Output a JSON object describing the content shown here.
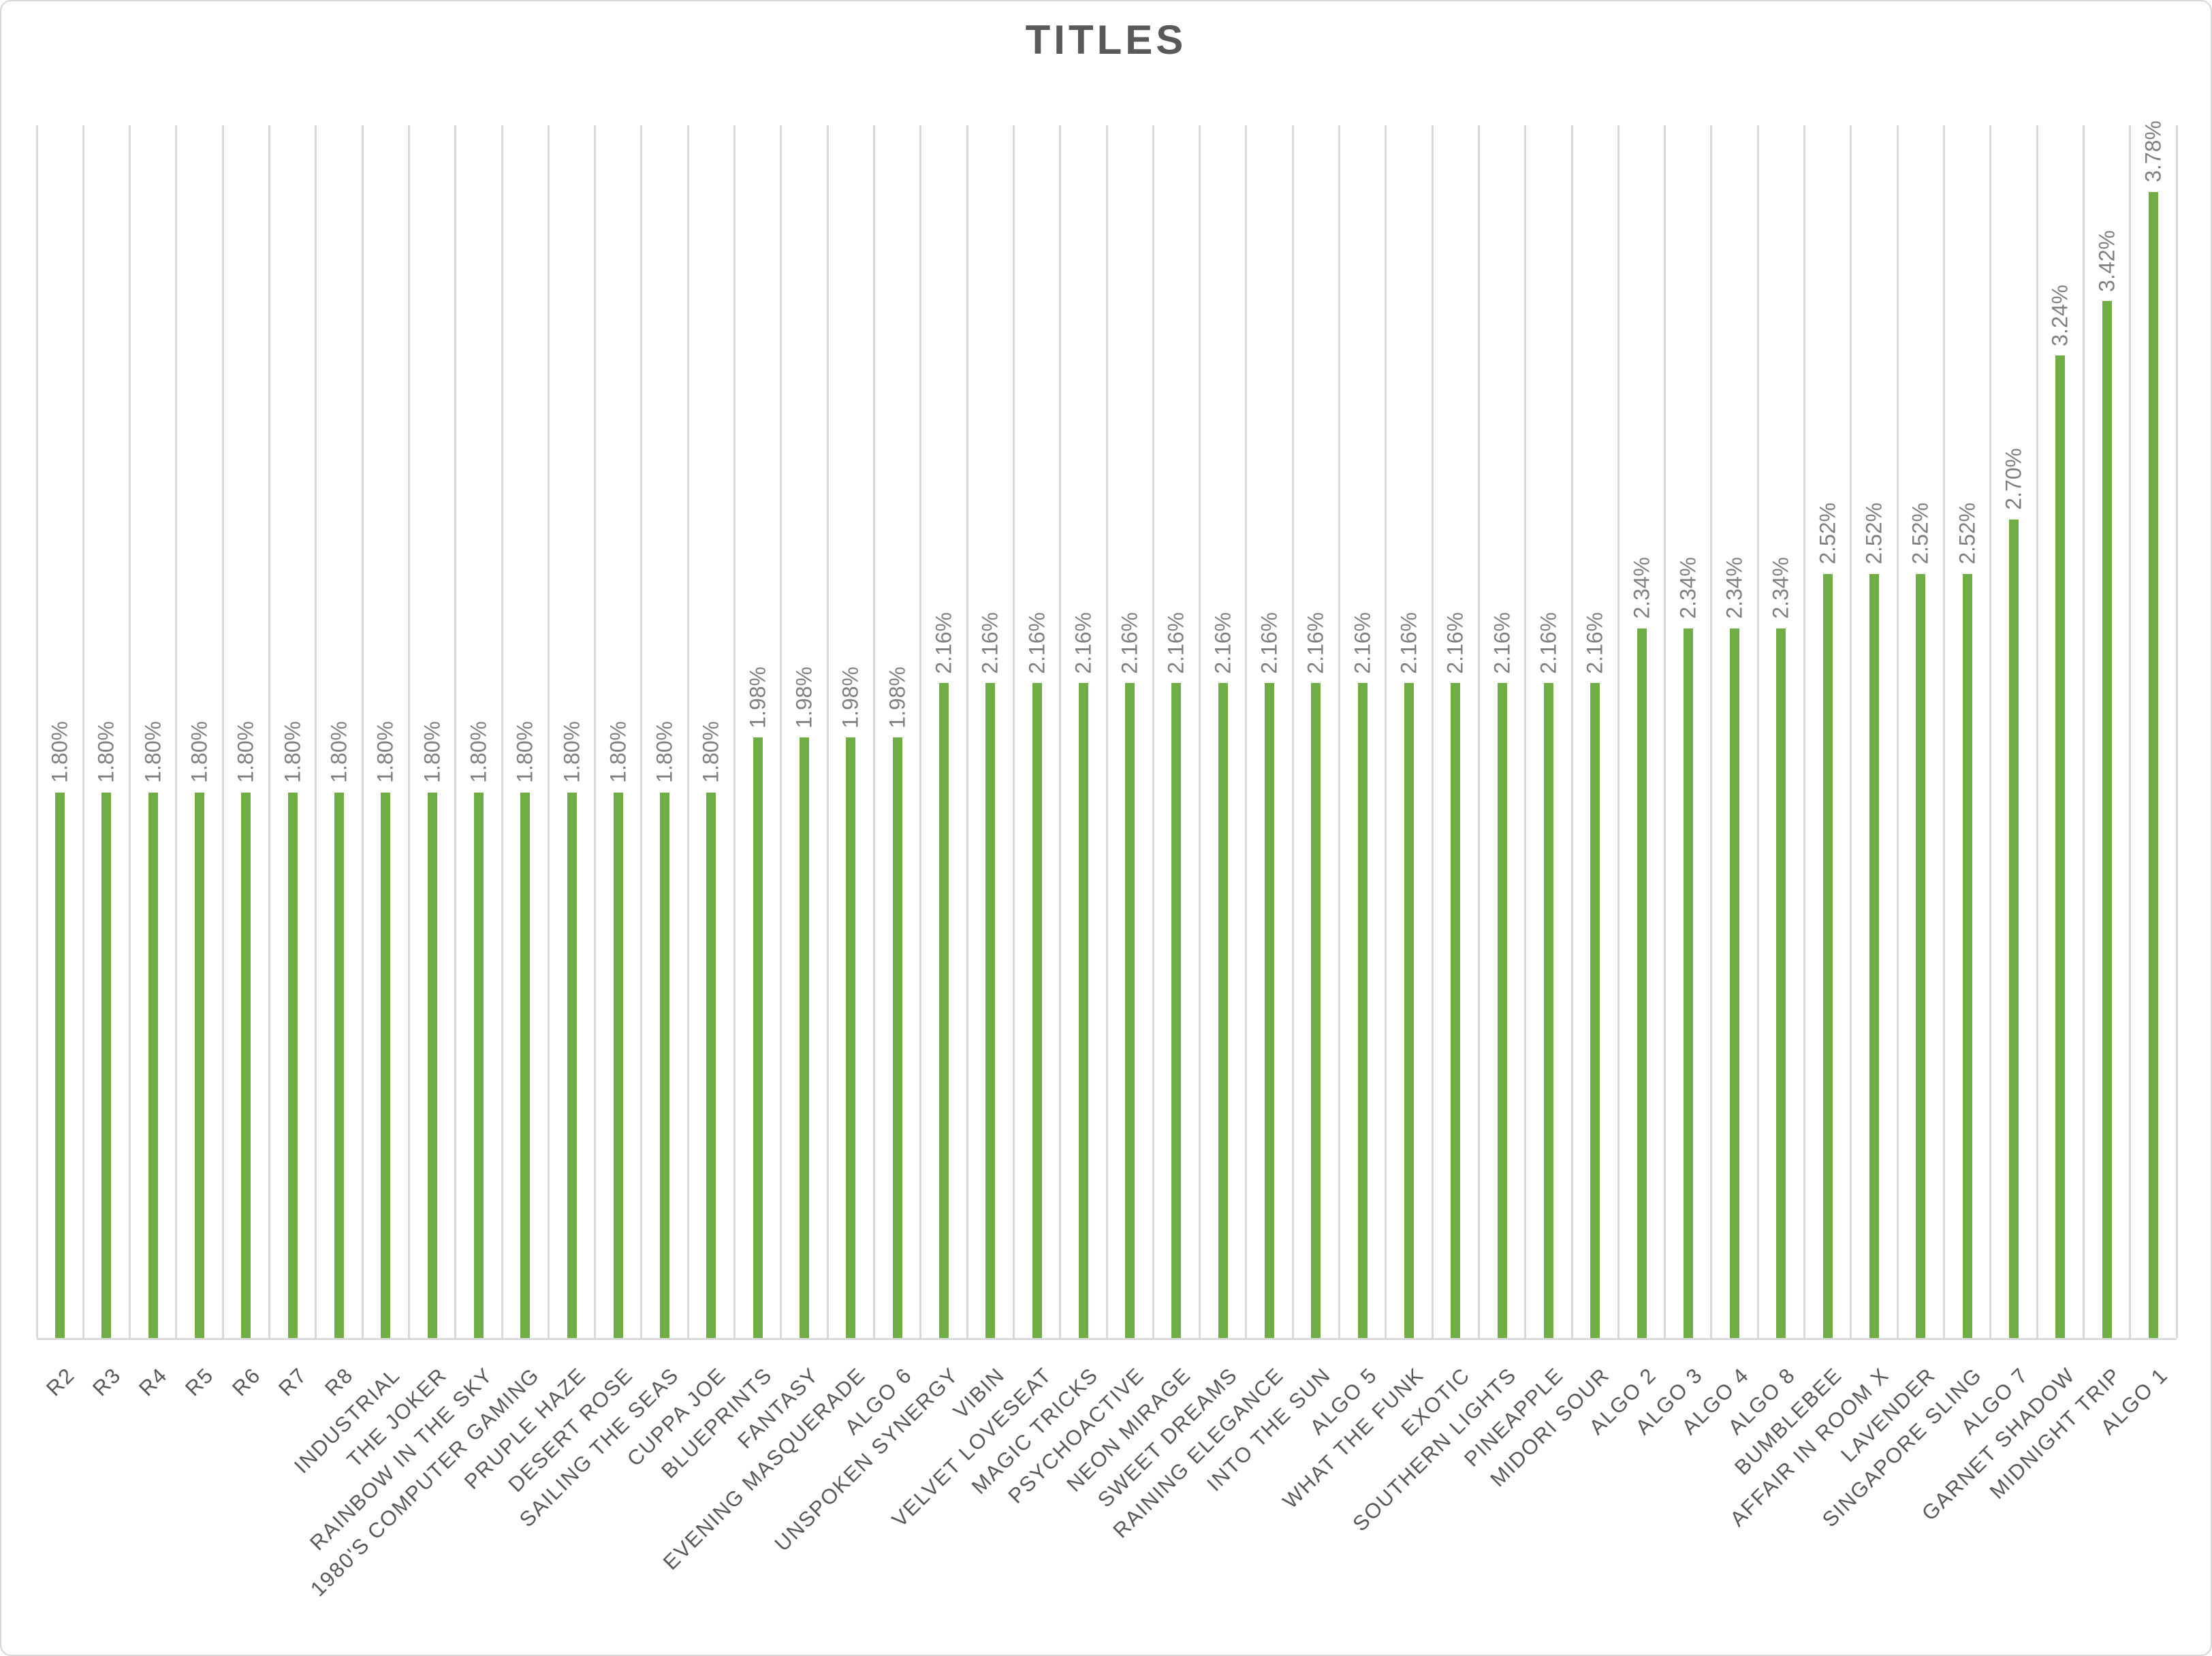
{
  "chart_data": {
    "type": "bar",
    "title": "TITLES",
    "categories": [
      "R2",
      "R3",
      "R4",
      "R5",
      "R6",
      "R7",
      "R8",
      "INDUSTRIAL",
      "THE JOKER",
      "RAINBOW IN THE SKY",
      "1980'S COMPUTER GAMING",
      "PRUPLE HAZE",
      "DESERT ROSE",
      "SAILING THE SEAS",
      "CUPPA JOE",
      "BLUEPRINTS",
      "FANTASY",
      "EVENING MASQUERADE",
      "ALGO 6",
      "UNSPOKEN SYNERGY",
      "VIBIN",
      "VELVET LOVESEAT",
      "MAGIC TRICKS",
      "PSYCHOACTIVE",
      "NEON MIRAGE",
      "SWEET DREAMS",
      "RAINING ELEGANCE",
      "INTO THE SUN",
      "ALGO 5",
      "WHAT THE FUNK",
      "EXOTIC",
      "SOUTHERN LIGHTS",
      "PINEAPPLE",
      "MIDORI SOUR",
      "ALGO 2",
      "ALGO 3",
      "ALGO 4",
      "ALGO 8",
      "BUMBLEBEE",
      "AFFAIR IN ROOM X",
      "LAVENDER",
      "SINGAPORE SLING",
      "ALGO 7",
      "GARNET SHADOW",
      "MIDNIGHT TRIP",
      "ALGO 1"
    ],
    "values": [
      1.8,
      1.8,
      1.8,
      1.8,
      1.8,
      1.8,
      1.8,
      1.8,
      1.8,
      1.8,
      1.8,
      1.8,
      1.8,
      1.8,
      1.8,
      1.98,
      1.98,
      1.98,
      1.98,
      2.16,
      2.16,
      2.16,
      2.16,
      2.16,
      2.16,
      2.16,
      2.16,
      2.16,
      2.16,
      2.16,
      2.16,
      2.16,
      2.16,
      2.16,
      2.34,
      2.34,
      2.34,
      2.34,
      2.52,
      2.52,
      2.52,
      2.52,
      2.7,
      3.24,
      3.42,
      3.78
    ],
    "value_labels": [
      "1.80%",
      "1.80%",
      "1.80%",
      "1.80%",
      "1.80%",
      "1.80%",
      "1.80%",
      "1.80%",
      "1.80%",
      "1.80%",
      "1.80%",
      "1.80%",
      "1.80%",
      "1.80%",
      "1.80%",
      "1.98%",
      "1.98%",
      "1.98%",
      "1.98%",
      "2.16%",
      "2.16%",
      "2.16%",
      "2.16%",
      "2.16%",
      "2.16%",
      "2.16%",
      "2.16%",
      "2.16%",
      "2.16%",
      "2.16%",
      "2.16%",
      "2.16%",
      "2.16%",
      "2.16%",
      "2.34%",
      "2.34%",
      "2.34%",
      "2.34%",
      "2.52%",
      "2.52%",
      "2.52%",
      "2.52%",
      "2.70%",
      "3.24%",
      "3.42%",
      "3.78%"
    ],
    "xlabel": "",
    "ylabel": "",
    "ylim": [
      0,
      4.0
    ],
    "grid": "vertical-category-separators",
    "legend": "none",
    "colors": {
      "bar_fill": "#70AD47",
      "gridline": "#D9D9D9",
      "axis_line": "#D9D9D9",
      "value_label_text": "#7F7F7F",
      "category_label_text": "#595959",
      "title_text": "#595959"
    }
  }
}
